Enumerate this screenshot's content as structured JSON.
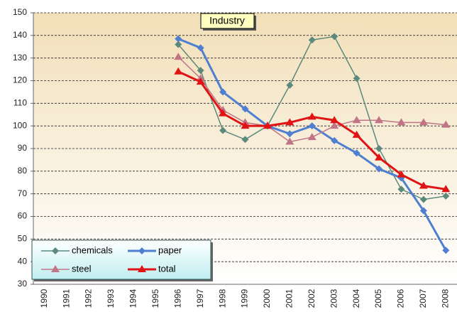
{
  "chart_data": {
    "type": "line",
    "title": "Industry",
    "categories": [
      "1990",
      "1991",
      "1992",
      "1993",
      "1994",
      "1995",
      "1996",
      "1997",
      "1998",
      "1999",
      "2000",
      "2001",
      "2002",
      "2003",
      "2004",
      "2005",
      "2006",
      "2007",
      "2008"
    ],
    "series": [
      {
        "name": "chemicals",
        "color": "#5b8a7c",
        "marker": "diamond",
        "values": [
          null,
          null,
          null,
          null,
          null,
          null,
          136,
          124.5,
          98,
          94,
          100,
          118,
          138,
          139.5,
          121,
          90,
          72,
          67.5,
          69
        ]
      },
      {
        "name": "paper",
        "color": "#4f7fd0",
        "marker": "diamond",
        "values": [
          null,
          null,
          null,
          null,
          null,
          null,
          138.5,
          134.5,
          115,
          107.5,
          100,
          96.5,
          100,
          93.5,
          88,
          81,
          77,
          62.5,
          45
        ]
      },
      {
        "name": "steel",
        "color": "#c07486",
        "marker": "triangle",
        "values": [
          null,
          null,
          null,
          null,
          null,
          null,
          130.5,
          121,
          107,
          101.5,
          100,
          93,
          95,
          100,
          102.5,
          102.5,
          101.5,
          101.5,
          100.5
        ]
      },
      {
        "name": "total",
        "color": "#e01414",
        "marker": "triangle",
        "values": [
          null,
          null,
          null,
          null,
          null,
          null,
          124,
          119.5,
          105.5,
          100,
          100,
          101.5,
          104,
          102.5,
          96,
          86,
          78.5,
          73.5,
          72
        ]
      }
    ],
    "ylim": [
      30,
      150
    ],
    "yticks": [
      30,
      40,
      50,
      60,
      70,
      80,
      90,
      100,
      110,
      120,
      130,
      140,
      150
    ],
    "grid": true,
    "legend": "bottom-left"
  }
}
